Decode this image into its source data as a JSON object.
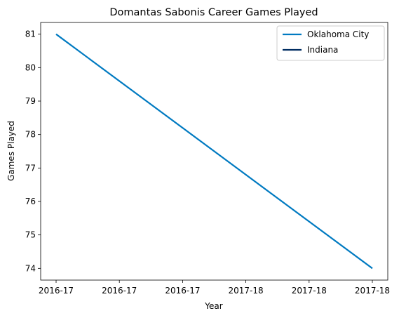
{
  "chart_data": {
    "type": "line",
    "title": "Domantas Sabonis Career Games Played",
    "xlabel": "Year",
    "ylabel": "Games Played",
    "categories": [
      "2016-17",
      "2016-17",
      "2016-17",
      "2017-18",
      "2017-18",
      "2017-18"
    ],
    "ylim": [
      73.65,
      81.35
    ],
    "yticks": [
      74,
      75,
      76,
      77,
      78,
      79,
      80,
      81
    ],
    "grid": false,
    "legend_position": "top-right",
    "series": [
      {
        "name": "Oklahoma City",
        "color": "#007AC1",
        "x": [
          "2016-17",
          "2017-18"
        ],
        "values": [
          81,
          74
        ]
      },
      {
        "name": "Indiana",
        "color": "#002D62",
        "x": [],
        "values": []
      }
    ]
  }
}
